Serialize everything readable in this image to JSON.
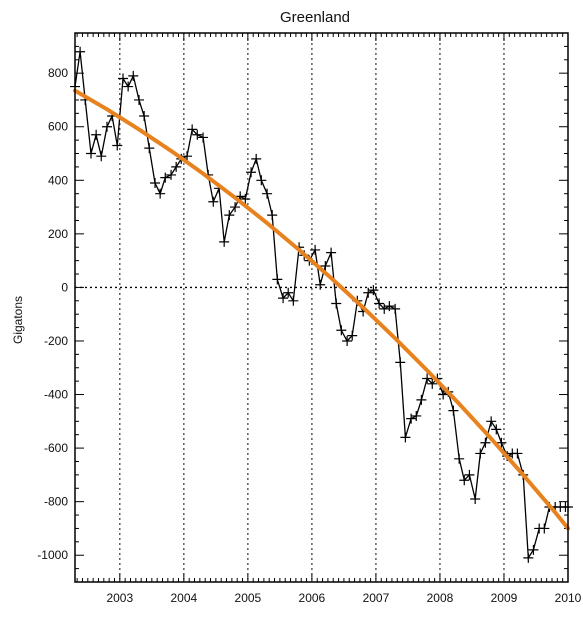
{
  "chart_data": {
    "type": "line",
    "title": "Greenland",
    "ylabel": "Gigatons",
    "xlabel": "",
    "xlim": [
      2002.3,
      2010.0
    ],
    "ylim": [
      -1100,
      950
    ],
    "xticks": [
      2003,
      2004,
      2005,
      2006,
      2007,
      2008,
      2009,
      2010
    ],
    "yticks": [
      -1000,
      -800,
      -600,
      -400,
      -200,
      0,
      200,
      400,
      600,
      800
    ],
    "grid": true,
    "zero_line": true,
    "colors": {
      "series": "#000000",
      "trend": "#e8821e"
    },
    "series": [
      {
        "marker": "+",
        "x": [
          2002.3,
          2002.38,
          2002.46,
          2002.55,
          2002.63,
          2002.71,
          2002.8,
          2002.88,
          2002.96,
          2003.05,
          2003.13,
          2003.21,
          2003.3,
          2003.38,
          2003.46,
          2003.55,
          2003.63,
          2003.71,
          2003.8,
          2003.88,
          2003.96,
          2004.05,
          2004.13,
          2004.21,
          2004.3,
          2004.38,
          2004.46,
          2004.55,
          2004.63,
          2004.71,
          2004.8,
          2004.88,
          2004.96,
          2005.05,
          2005.13,
          2005.21,
          2005.3,
          2005.38,
          2005.46,
          2005.55,
          2005.63,
          2005.71,
          2005.8,
          2005.88,
          2005.96,
          2006.05,
          2006.13,
          2006.21,
          2006.3,
          2006.38,
          2006.46,
          2006.55,
          2006.63,
          2006.71,
          2006.8,
          2006.88,
          2006.96,
          2007.05,
          2007.13,
          2007.21,
          2007.3,
          2007.38,
          2007.46,
          2007.55,
          2007.63,
          2007.71,
          2007.8,
          2007.88,
          2007.96,
          2008.05,
          2008.13,
          2008.21,
          2008.3,
          2008.38,
          2008.46,
          2008.55,
          2008.63,
          2008.71,
          2008.8,
          2008.88,
          2008.96,
          2009.05,
          2009.13,
          2009.21,
          2009.3,
          2009.38,
          2009.46,
          2009.55,
          2009.63,
          2009.71,
          2009.8,
          2009.88,
          2009.96,
          2010.0
        ],
        "y": [
          750,
          880,
          700,
          500,
          570,
          490,
          600,
          640,
          530,
          780,
          750,
          790,
          700,
          640,
          520,
          390,
          350,
          410,
          420,
          450,
          480,
          490,
          590,
          570,
          560,
          420,
          320,
          370,
          170,
          270,
          300,
          340,
          330,
          430,
          480,
          400,
          350,
          270,
          30,
          -40,
          -20,
          -50,
          150,
          120,
          100,
          140,
          10,
          80,
          130,
          -60,
          -160,
          -200,
          -180,
          -50,
          -90,
          -20,
          -10,
          -60,
          -80,
          -70,
          -80,
          -280,
          -560,
          -490,
          -480,
          -420,
          -340,
          -360,
          -340,
          -400,
          -390,
          -460,
          -640,
          -720,
          -700,
          -790,
          -620,
          -580,
          -500,
          -530,
          -580,
          -630,
          -620,
          -620,
          -700,
          -1010,
          -980,
          -900,
          -900,
          -820,
          -820,
          -820,
          -820,
          -820
        ]
      }
    ],
    "trend": {
      "x": [
        2002.3,
        2002.8,
        2003.3,
        2003.8,
        2004.3,
        2004.8,
        2005.3,
        2005.8,
        2006.3,
        2006.8,
        2007.3,
        2007.8,
        2008.3,
        2008.8,
        2009.3,
        2009.8,
        2010.0
      ],
      "y": [
        735,
        665,
        590,
        510,
        425,
        335,
        240,
        140,
        35,
        -75,
        -190,
        -310,
        -435,
        -565,
        -700,
        -840,
        -900
      ]
    }
  }
}
